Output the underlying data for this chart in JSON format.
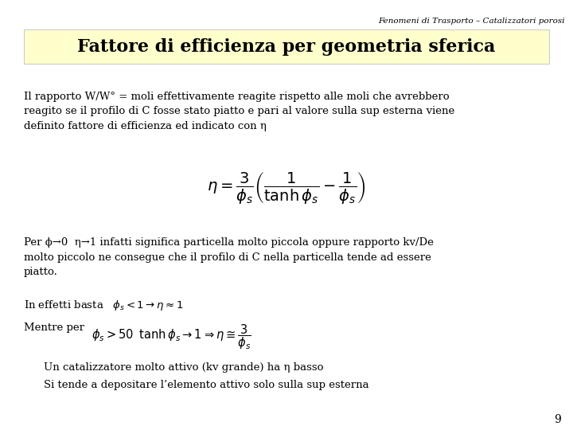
{
  "background_color": "#ffffff",
  "header_text": "Fenomeni di Trasporto – Catalizzatori porosi",
  "header_fontsize": 7.5,
  "header_color": "#000000",
  "title_text": "Fattore di efficienza per geometria sferica",
  "title_fontsize": 16,
  "title_bg_color": "#ffffcc",
  "title_color": "#000000",
  "body_color": "#000000",
  "body_fontsize": 9.5,
  "paragraph1": "Il rapporto W/W° = moli effettivamente reagite rispetto alle moli che avrebbero\nreagito se il profilo di C fosse stato piatto e pari al valore sulla sup esterna viene\ndefinito fattore di efficienza ed indicato con η",
  "formula_main": "$\\eta = \\dfrac{3}{\\phi_s} \\left( \\dfrac{1}{\\tanh \\phi_s} - \\dfrac{1}{\\phi_s} \\right)$",
  "formula_fontsize": 14,
  "paragraph2": "Per ϕ→0  η→1 infatti significa particella molto piccola oppure rapporto kv/De\nmolto piccolo ne consegue che il profilo di C nella particella tende ad essere\npiatto.",
  "line_effetti": "In effetti basta   $\\phi_s < 1 \\rightarrow \\eta \\approx 1$",
  "line_mentre_text": "Mentre per",
  "line_mentre_formula": "$\\phi_s > 50 \\;\\; \\tanh \\phi_s \\rightarrow 1 \\Rightarrow \\eta \\cong \\dfrac{3}{\\phi_s}$",
  "line_cataliz": "Un catalizzatore molto attivo (kv grande) ha η basso",
  "line_sitende": "Si tende a depositare l’elemento attivo solo sulla sup esterna",
  "page_number": "9",
  "fig_width": 7.2,
  "fig_height": 5.4,
  "fig_dpi": 100
}
